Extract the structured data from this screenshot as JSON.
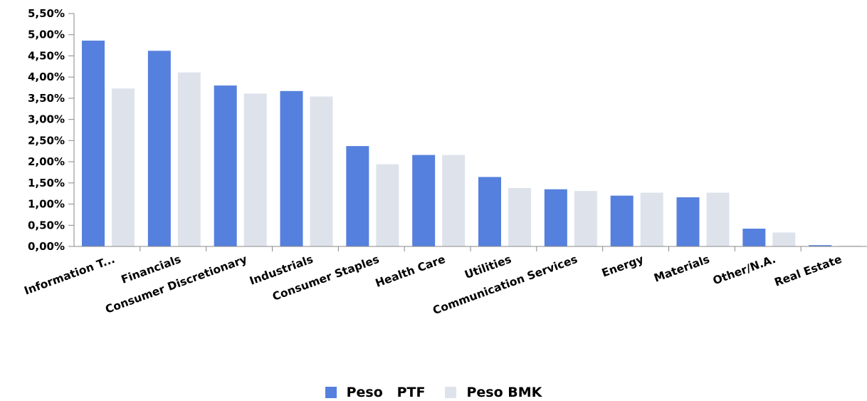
{
  "chart_data": {
    "type": "bar",
    "categories": [
      "Information T...",
      "Financials",
      "Consumer Discretionary",
      "Industrials",
      "Consumer Staples",
      "Health Care",
      "Utilities",
      "Communication Services",
      "Energy",
      "Materials",
      "Other/N.A.",
      "Real Estate"
    ],
    "series": [
      {
        "name": "Peso   PTF",
        "color": "#5580dd",
        "values": [
          4.86,
          4.62,
          3.8,
          3.67,
          2.37,
          2.16,
          1.64,
          1.35,
          1.2,
          1.16,
          0.42,
          0.03
        ]
      },
      {
        "name": "Peso BMK",
        "color": "#dee3eb",
        "values": [
          3.73,
          4.11,
          3.61,
          3.54,
          1.94,
          2.16,
          1.38,
          1.31,
          1.27,
          1.27,
          0.33,
          0.02
        ]
      }
    ],
    "ylim": [
      0,
      5.5
    ],
    "y_ticks": [
      "0,00%",
      "0,50%",
      "1,00%",
      "1,50%",
      "2,00%",
      "2,50%",
      "3,00%",
      "3,50%",
      "4,00%",
      "4,50%",
      "5,00%",
      "5,50%"
    ],
    "grid": false,
    "legend_position": "bottom-center",
    "title": "",
    "xlabel": "",
    "ylabel": ""
  }
}
